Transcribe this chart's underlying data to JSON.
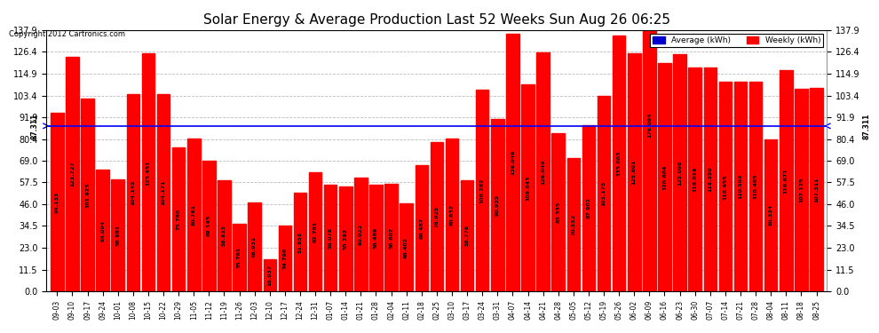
{
  "title": "Solar Energy & Average Production Last 52 Weeks Sun Aug 26 06:25",
  "copyright": "Copyright 2012 Cartronics.com",
  "average_label": "Average (kWh)",
  "weekly_label": "Weekly (kWh)",
  "average_value": 87.311,
  "bar_color": "#FF0000",
  "average_line_color": "#0000FF",
  "background_color": "#FFFFFF",
  "grid_color": "#AAAAAA",
  "ylim": [
    0,
    137.9
  ],
  "yticks": [
    0.0,
    11.5,
    23.0,
    34.5,
    46.0,
    57.5,
    69.0,
    80.4,
    91.9,
    103.4,
    114.9,
    126.4,
    137.9
  ],
  "categories": [
    "09-03",
    "09-10",
    "09-17",
    "09-24",
    "10-01",
    "10-08",
    "10-15",
    "10-22",
    "10-29",
    "11-05",
    "11-12",
    "11-19",
    "11-26",
    "12-03",
    "12-10",
    "12-17",
    "12-24",
    "12-31",
    "01-07",
    "01-14",
    "01-21",
    "01-28",
    "02-04",
    "02-11",
    "02-18",
    "02-25",
    "03-10",
    "03-17",
    "03-24",
    "03-31",
    "04-07",
    "04-14",
    "04-21",
    "04-28",
    "05-05",
    "05-12",
    "05-19",
    "05-26",
    "06-02",
    "06-09",
    "06-16",
    "06-23",
    "06-30",
    "07-07",
    "07-14",
    "07-21",
    "07-28",
    "08-04",
    "08-11",
    "08-18",
    "08-25"
  ],
  "values": [
    94.133,
    123.727,
    101.925,
    64.094,
    58.981,
    104.145,
    125.451,
    104.171,
    75.78,
    80.781,
    69.145,
    58.815,
    35.761,
    46.931,
    16.937,
    34.796,
    51.858,
    62.761,
    56.078,
    55.292,
    60.022,
    56.489,
    56.607,
    46.402,
    66.487,
    78.925,
    80.832,
    58.776,
    106.282,
    90.935,
    136.046,
    109.043,
    126.049,
    83.355,
    70.552,
    87.902,
    103.175,
    135.003,
    125.601,
    176.094,
    120.604,
    125.096,
    118.019,
    118.35,
    110.455,
    110.503,
    110.465,
    80.334,
    116.671,
    107.125,
    107.311
  ],
  "legend_avg_color": "#0000CC",
  "legend_weekly_color": "#FF0000"
}
